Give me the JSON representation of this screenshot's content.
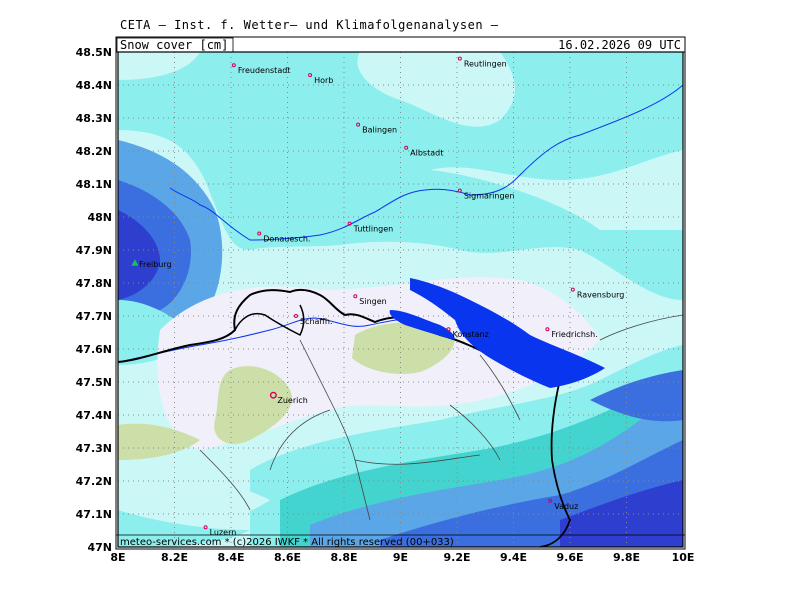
{
  "header": {
    "title": "CETA – Inst. f. Wetter– und Klimafolgenanalysen –",
    "field_label": "Snow_cover_[cm]",
    "datetime": "16.02.2026 09 UTC",
    "footer": "meteo-services.com * (c)2026 IWKF * All rights reserved (00+033)"
  },
  "axes": {
    "lon_labels": [
      "8E",
      "8.2E",
      "8.4E",
      "8.6E",
      "8.8E",
      "9E",
      "9.2E",
      "9.4E",
      "9.6E",
      "9.8E",
      "10E"
    ],
    "lat_labels": [
      "48.5N",
      "48.4N",
      "48.3N",
      "48.2N",
      "48.1N",
      "48N",
      "47.9N",
      "47.8N",
      "47.7N",
      "47.6N",
      "47.5N",
      "47.4N",
      "47.3N",
      "47.2N",
      "47.1N",
      "47N"
    ],
    "lon_range": [
      8.0,
      10.0
    ],
    "lat_range": [
      47.0,
      48.5
    ],
    "grid": "dotted"
  },
  "colors": {
    "very_light": "#f0effa",
    "light_green": "#cddfa8",
    "light_cyan": "#ccf7f7",
    "cyan": "#8deeee",
    "teal": "#44d4d0",
    "blue1": "#5aa6e6",
    "blue2": "#3b6fe0",
    "blue3": "#2e3fd0",
    "lake": "#0a35ee",
    "river": "#0a35ee",
    "city_marker": "#d00060",
    "highlight_city": "#1abe5a"
  },
  "cities": [
    {
      "name": "Freudenstadt",
      "lon": 8.41,
      "lat": 48.46,
      "highlight": false
    },
    {
      "name": "Horb",
      "lon": 8.68,
      "lat": 48.43,
      "highlight": false
    },
    {
      "name": "Reutlingen",
      "lon": 9.21,
      "lat": 48.48,
      "highlight": false
    },
    {
      "name": "Balingen",
      "lon": 8.85,
      "lat": 48.28,
      "highlight": false
    },
    {
      "name": "Albstadt",
      "lon": 9.02,
      "lat": 48.21,
      "highlight": false
    },
    {
      "name": "Sigmaringen",
      "lon": 9.21,
      "lat": 48.08,
      "highlight": false
    },
    {
      "name": "Tuttlingen",
      "lon": 8.82,
      "lat": 47.98,
      "highlight": false
    },
    {
      "name": "Donauesch.",
      "lon": 8.5,
      "lat": 47.95,
      "highlight": false
    },
    {
      "name": "Freiburg",
      "lon": 8.06,
      "lat": 47.86,
      "highlight": true
    },
    {
      "name": "Singen",
      "lon": 8.84,
      "lat": 47.76,
      "highlight": false
    },
    {
      "name": "Schaffh.",
      "lon": 8.63,
      "lat": 47.7,
      "highlight": false
    },
    {
      "name": "Konstanz",
      "lon": 9.17,
      "lat": 47.66,
      "highlight": false
    },
    {
      "name": "Ravensburg",
      "lon": 9.61,
      "lat": 47.78,
      "highlight": false
    },
    {
      "name": "Friedrichsh.",
      "lon": 9.52,
      "lat": 47.66,
      "highlight": false
    },
    {
      "name": "Zuerich",
      "lon": 8.55,
      "lat": 47.46,
      "highlight": false,
      "large": true
    },
    {
      "name": "Vaduz",
      "lon": 9.53,
      "lat": 47.14,
      "highlight": false
    },
    {
      "name": "Luzern",
      "lon": 8.31,
      "lat": 47.06,
      "highlight": false
    }
  ]
}
